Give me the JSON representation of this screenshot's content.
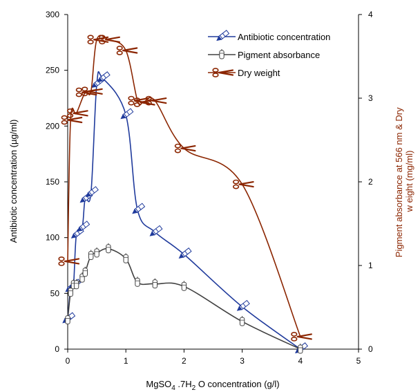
{
  "chart_data": {
    "type": "line",
    "xlabel": "MgSO₄.7H₂O concentration (g/l)",
    "xlabel_parts": [
      "MgSO",
      "4",
      " .7H",
      "2",
      " O concentration (g/l)"
    ],
    "ylabel": "Antibiotic concentration (µg/ml)",
    "y2label_lines": [
      "Pigment absorbance at 566 nm & Dry",
      "w eight (mg/ml)"
    ],
    "xlim": [
      0,
      5
    ],
    "ylim": [
      0,
      300
    ],
    "y2lim": [
      0,
      4
    ],
    "x_ticks": [
      "0",
      "1",
      "2",
      "3",
      "4",
      "5"
    ],
    "y_ticks": [
      "0",
      "50",
      "100",
      "150",
      "200",
      "250",
      "300"
    ],
    "y2_ticks": [
      "0",
      "1",
      "2",
      "3",
      "4"
    ],
    "grid": false,
    "legend": "top-right",
    "series": [
      {
        "name": "Antibiotic concentration",
        "axis": "left",
        "color": "#1f3a9c",
        "marker": "pencil-icon",
        "x": [
          0,
          0.05,
          0.1,
          0.15,
          0.25,
          0.3,
          0.4,
          0.5,
          0.6,
          1.0,
          1.2,
          1.5,
          2.0,
          3.0,
          4.0
        ],
        "y": [
          27,
          55,
          57,
          103,
          109,
          135,
          140,
          238,
          243,
          210,
          125,
          105,
          85,
          38,
          0
        ]
      },
      {
        "name": "Pigment absorbance",
        "axis": "right",
        "color": "#404040",
        "marker": "tube-icon",
        "x": [
          0,
          0.05,
          0.1,
          0.15,
          0.25,
          0.3,
          0.4,
          0.5,
          0.7,
          1.0,
          1.2,
          1.5,
          2.0,
          3.0,
          4.0
        ],
        "y": [
          0.35,
          0.68,
          0.77,
          0.77,
          0.85,
          0.92,
          1.12,
          1.15,
          1.2,
          1.08,
          0.8,
          0.78,
          0.75,
          0.33,
          0.0
        ]
      },
      {
        "name": "Dry weight",
        "axis": "right",
        "color": "#8b2500",
        "marker": "scissors-icon",
        "x": [
          0,
          0.05,
          0.15,
          0.3,
          0.4,
          0.5,
          0.7,
          1.0,
          1.2,
          1.3,
          1.5,
          2.0,
          3.0,
          4.0
        ],
        "y": [
          1.05,
          2.74,
          2.82,
          3.07,
          3.08,
          3.7,
          3.7,
          3.57,
          2.97,
          2.95,
          2.97,
          2.4,
          1.97,
          0.15
        ]
      }
    ]
  }
}
